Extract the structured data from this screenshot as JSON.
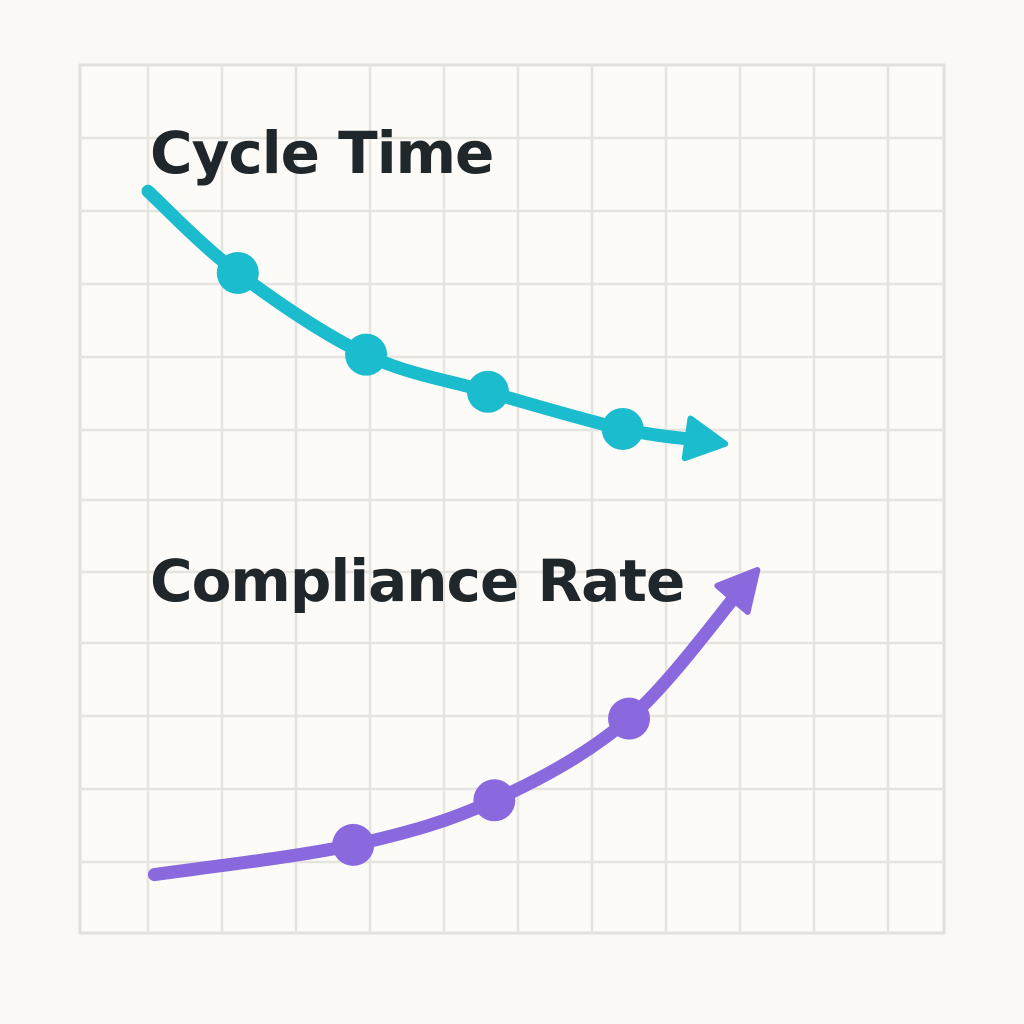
{
  "chart_data": {
    "type": "line",
    "grid": true,
    "xlim": [
      0,
      11.6
    ],
    "ylim": [
      0,
      11.7
    ],
    "series": [
      {
        "name": "Cycle Time",
        "color": "#1bbccd",
        "trend": "decreasing",
        "end_marker": "arrow",
        "x": [
          0,
          1.4,
          3.4,
          5.3,
          7.4,
          9.0
        ],
        "y": [
          10.0,
          8.9,
          7.8,
          7.3,
          6.8,
          6.6
        ],
        "marker_indices": [
          1,
          2,
          3,
          4
        ]
      },
      {
        "name": "Compliance Rate",
        "color": "#8a68de",
        "trend": "increasing",
        "end_marker": "arrow",
        "x": [
          0.1,
          3.2,
          5.4,
          7.5,
          9.5
        ],
        "y": [
          0.8,
          1.2,
          1.8,
          2.9,
          4.9
        ],
        "marker_indices": [
          1,
          2,
          3
        ]
      }
    ]
  }
}
